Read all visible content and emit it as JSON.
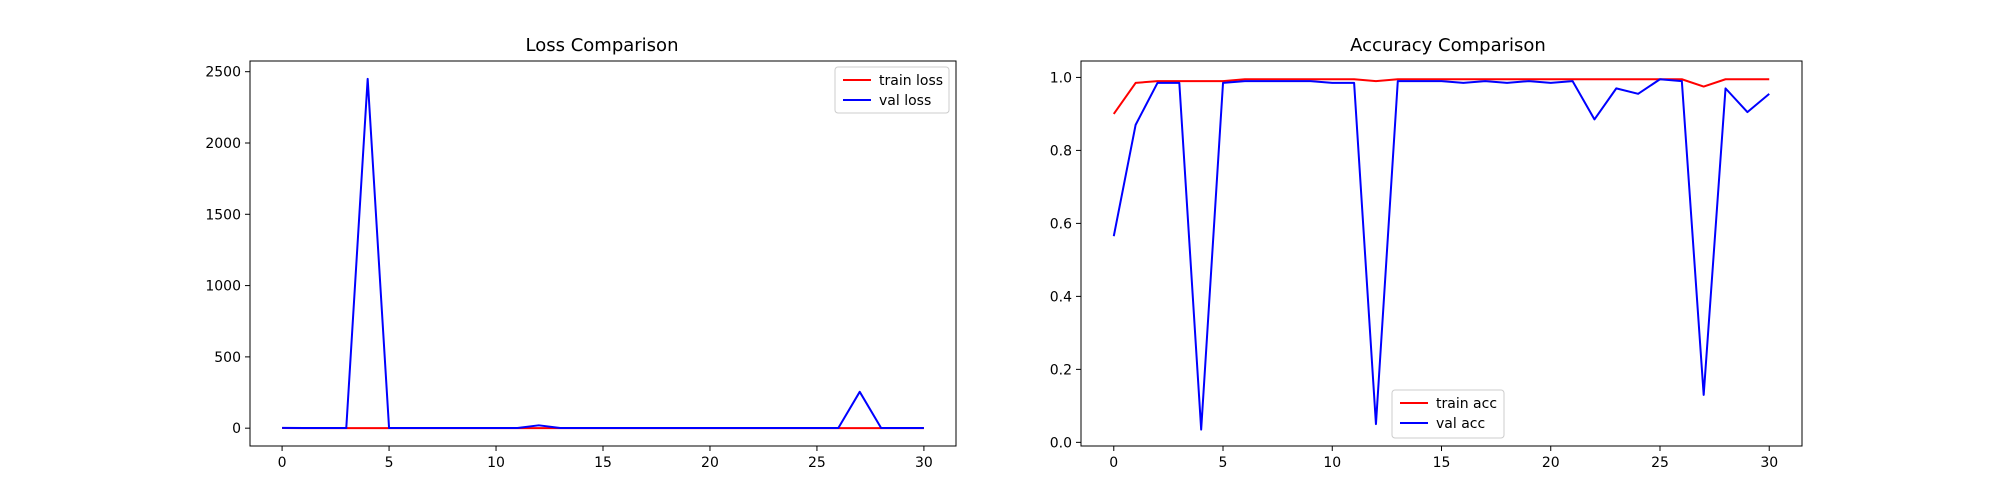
{
  "chart_data": [
    {
      "type": "line",
      "title": "Loss Comparison",
      "xlabel": "",
      "ylabel": "",
      "xlim": [
        -1.5,
        31.5
      ],
      "ylim": [
        -125,
        2575
      ],
      "xticks": [
        0,
        5,
        10,
        15,
        20,
        25,
        30
      ],
      "yticks": [
        0,
        500,
        1000,
        1500,
        2000,
        2500
      ],
      "grid": false,
      "legend_position": "upper right",
      "x": [
        0,
        1,
        2,
        3,
        4,
        5,
        6,
        7,
        8,
        9,
        10,
        11,
        12,
        13,
        14,
        15,
        16,
        17,
        18,
        19,
        20,
        21,
        22,
        23,
        24,
        25,
        26,
        27,
        28,
        29,
        30
      ],
      "series": [
        {
          "name": "train loss",
          "color": "#ff0000",
          "values": [
            1,
            0.5,
            0.4,
            0.3,
            0.3,
            0.3,
            0.3,
            0.3,
            0.3,
            0.3,
            0.3,
            0.3,
            0.3,
            0.3,
            0.3,
            0.3,
            0.3,
            0.3,
            0.3,
            0.3,
            0.3,
            0.3,
            0.3,
            0.3,
            0.3,
            0.3,
            0.3,
            0.3,
            0.3,
            0.3,
            0.3
          ]
        },
        {
          "name": "val loss",
          "color": "#0000ff",
          "values": [
            2,
            1,
            1,
            1,
            2450,
            1,
            1,
            1,
            1,
            1,
            1,
            1,
            20,
            1,
            1,
            1,
            1,
            1,
            1,
            1,
            1,
            1,
            1,
            1,
            1,
            1,
            1,
            255,
            1,
            1,
            1
          ]
        }
      ]
    },
    {
      "type": "line",
      "title": "Accuracy Comparison",
      "xlabel": "",
      "ylabel": "",
      "xlim": [
        -1.5,
        31.5
      ],
      "ylim": [
        -0.01,
        1.045
      ],
      "xticks": [
        0,
        5,
        10,
        15,
        20,
        25,
        30
      ],
      "yticks": [
        "0.0",
        "0.2",
        "0.4",
        "0.6",
        "0.8",
        "1.0"
      ],
      "grid": false,
      "legend_position": "lower center",
      "x": [
        0,
        1,
        2,
        3,
        4,
        5,
        6,
        7,
        8,
        9,
        10,
        11,
        12,
        13,
        14,
        15,
        16,
        17,
        18,
        19,
        20,
        21,
        22,
        23,
        24,
        25,
        26,
        27,
        28,
        29,
        30
      ],
      "series": [
        {
          "name": "train acc",
          "color": "#ff0000",
          "values": [
            0.9,
            0.985,
            0.99,
            0.99,
            0.99,
            0.99,
            0.995,
            0.995,
            0.995,
            0.995,
            0.995,
            0.995,
            0.99,
            0.995,
            0.995,
            0.995,
            0.995,
            0.995,
            0.995,
            0.995,
            0.995,
            0.995,
            0.995,
            0.995,
            0.995,
            0.995,
            0.995,
            0.975,
            0.995,
            0.995,
            0.995
          ]
        },
        {
          "name": "val acc",
          "color": "#0000ff",
          "values": [
            0.565,
            0.87,
            0.985,
            0.985,
            0.035,
            0.985,
            0.99,
            0.99,
            0.99,
            0.99,
            0.985,
            0.985,
            0.05,
            0.99,
            0.99,
            0.99,
            0.985,
            0.99,
            0.985,
            0.99,
            0.985,
            0.99,
            0.885,
            0.97,
            0.955,
            0.995,
            0.99,
            0.13,
            0.97,
            0.905,
            0.955
          ]
        }
      ]
    }
  ]
}
